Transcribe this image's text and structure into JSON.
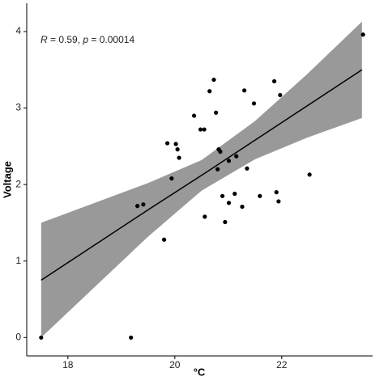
{
  "chart_data": {
    "type": "scatter",
    "x_label": "°C",
    "y_label": "Voltage",
    "annotation": [
      "R",
      " = 0.59, ",
      "p",
      " = 0.00014"
    ],
    "xlim": [
      17.23,
      23.7
    ],
    "ylim": [
      -0.24,
      4.37
    ],
    "xticks": [
      18,
      20,
      22
    ],
    "yticks": [
      0,
      1,
      2,
      3,
      4
    ],
    "point_color": "#000000",
    "x": [
      17.5,
      19.18,
      19.3,
      19.41,
      19.8,
      19.86,
      19.94,
      20.02,
      20.05,
      20.08,
      20.36,
      20.48,
      20.55,
      20.56,
      20.65,
      20.73,
      20.77,
      20.82,
      20.85,
      20.8,
      20.89,
      20.94,
      21.01,
      21.01,
      21.12,
      21.15,
      21.26,
      21.3,
      21.35,
      21.48,
      21.59,
      21.86,
      21.9,
      21.94,
      21.97,
      22.52,
      23.52
    ],
    "y": [
      0,
      0,
      1.72,
      1.74,
      1.28,
      2.54,
      2.08,
      2.53,
      2.46,
      2.35,
      2.9,
      2.72,
      2.72,
      1.58,
      3.22,
      3.37,
      2.94,
      2.46,
      2.43,
      2.2,
      1.85,
      1.51,
      2.31,
      1.76,
      1.88,
      2.37,
      1.71,
      3.23,
      2.21,
      3.06,
      1.85,
      3.35,
      1.9,
      1.78,
      3.17,
      2.13,
      3.96
    ],
    "fit": {
      "color": "#000000",
      "band_color": "#999999",
      "x": [
        17.5,
        18.5,
        19.5,
        20.5,
        21.5,
        22.5,
        23.5
      ],
      "y": [
        0.75,
        1.21,
        1.67,
        2.12,
        2.58,
        3.04,
        3.5
      ],
      "lower": [
        0.0,
        0.66,
        1.32,
        1.92,
        2.33,
        2.62,
        2.87
      ],
      "upper": [
        1.5,
        1.76,
        2.02,
        2.32,
        2.83,
        3.46,
        4.13
      ]
    }
  }
}
